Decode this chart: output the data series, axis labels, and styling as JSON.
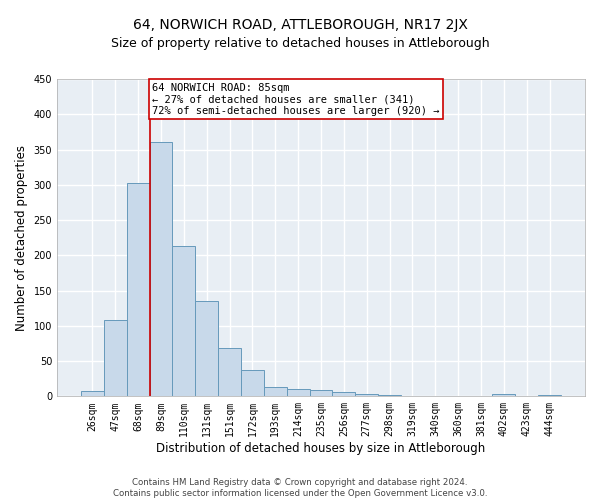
{
  "title": "64, NORWICH ROAD, ATTLEBOROUGH, NR17 2JX",
  "subtitle": "Size of property relative to detached houses in Attleborough",
  "xlabel": "Distribution of detached houses by size in Attleborough",
  "ylabel": "Number of detached properties",
  "footer_line1": "Contains HM Land Registry data © Crown copyright and database right 2024.",
  "footer_line2": "Contains public sector information licensed under the Open Government Licence v3.0.",
  "categories": [
    "26sqm",
    "47sqm",
    "68sqm",
    "89sqm",
    "110sqm",
    "131sqm",
    "151sqm",
    "172sqm",
    "193sqm",
    "214sqm",
    "235sqm",
    "256sqm",
    "277sqm",
    "298sqm",
    "319sqm",
    "340sqm",
    "360sqm",
    "381sqm",
    "402sqm",
    "423sqm",
    "444sqm"
  ],
  "values": [
    8,
    108,
    302,
    360,
    213,
    135,
    68,
    38,
    13,
    10,
    9,
    6,
    3,
    2,
    1,
    0,
    0,
    0,
    3,
    0,
    2
  ],
  "bar_color": "#c8d9ea",
  "bar_edge_color": "#6699bb",
  "property_line_x": 3,
  "property_line_color": "#cc0000",
  "annotation_line1": "64 NORWICH ROAD: 85sqm",
  "annotation_line2": "← 27% of detached houses are smaller (341)",
  "annotation_line3": "72% of semi-detached houses are larger (920) →",
  "annotation_box_color": "#ffffff",
  "annotation_box_edge_color": "#cc0000",
  "ylim": [
    0,
    450
  ],
  "yticks": [
    0,
    50,
    100,
    150,
    200,
    250,
    300,
    350,
    400,
    450
  ],
  "plot_bg_color": "#e8eef4",
  "title_fontsize": 10,
  "subtitle_fontsize": 9,
  "xlabel_fontsize": 8.5,
  "ylabel_fontsize": 8.5,
  "tick_fontsize": 7,
  "annotation_fontsize": 7.5,
  "grid_color": "#ffffff",
  "grid_linewidth": 1.0
}
